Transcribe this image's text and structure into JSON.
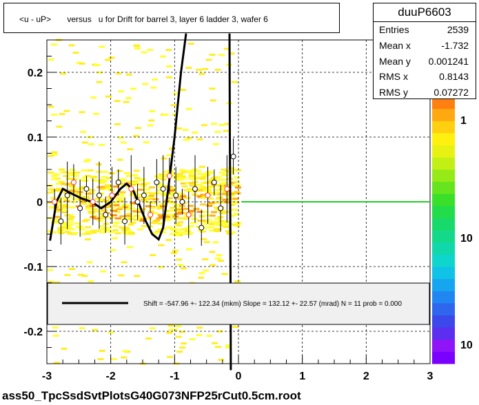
{
  "title": "<u - uP>       versus   u for Drift for barrel 3, layer 6 ladder 3, wafer 6",
  "footer": "ass50_TpcSsdSvtPlotsG40G073NFP25rCut0.5cm.root",
  "stats": {
    "name": "duuP6603",
    "rows": [
      {
        "label": "Entries",
        "value": "2539"
      },
      {
        "label": "Mean x",
        "value": "-1.732"
      },
      {
        "label": "Mean y",
        "value": "0.001241"
      },
      {
        "label": "RMS x",
        "value": "0.8143"
      },
      {
        "label": "RMS y",
        "value": "0.07272"
      }
    ]
  },
  "legend": {
    "text": "Shift =  -547.96 +- 122.34 (mkm) Slope =   132.12 +- 22.57 (mrad)  N = 11 prob = 0.000"
  },
  "colors": {
    "fit_line": "#000000",
    "zero_line": "#22cc22",
    "markers_open": "#000000",
    "markers_red": "#ff3333"
  },
  "chart_data": {
    "type": "heatmap",
    "title": "<u - uP>       versus   u for Drift for barrel 3, layer 6 ladder 3, wafer 6",
    "xlabel": "",
    "ylabel": "",
    "xlim": [
      -3,
      3
    ],
    "ylim": [
      -0.25,
      0.25
    ],
    "x_ticks": [
      -3,
      -2,
      -1,
      0,
      1,
      2,
      3
    ],
    "y_ticks": [
      -0.2,
      -0.1,
      0,
      0.1,
      0.2
    ],
    "y_tick_labels": [
      "-0.2",
      "-0.1",
      "0",
      "0.1",
      "0.2"
    ],
    "grid": true,
    "colorbar": {
      "scale": "log",
      "tick_labels": [
        "1",
        "10",
        "10"
      ]
    },
    "profile_points": [
      {
        "x": -2.88,
        "y": 0.0
      },
      {
        "x": -2.78,
        "y": -0.03
      },
      {
        "x": -2.68,
        "y": 0.01
      },
      {
        "x": -2.58,
        "y": 0.03
      },
      {
        "x": -2.48,
        "y": -0.01
      },
      {
        "x": -2.38,
        "y": 0.02
      },
      {
        "x": -2.28,
        "y": 0.0
      },
      {
        "x": -2.18,
        "y": 0.01
      },
      {
        "x": -2.08,
        "y": -0.02
      },
      {
        "x": -1.98,
        "y": 0.01
      },
      {
        "x": -1.88,
        "y": 0.03
      },
      {
        "x": -1.78,
        "y": -0.03
      },
      {
        "x": -1.68,
        "y": 0.02
      },
      {
        "x": -1.58,
        "y": 0.0
      },
      {
        "x": -1.48,
        "y": 0.01
      },
      {
        "x": -1.38,
        "y": -0.02
      },
      {
        "x": -1.28,
        "y": 0.03
      },
      {
        "x": -1.18,
        "y": 0.02
      },
      {
        "x": -1.08,
        "y": 0.04
      },
      {
        "x": -0.98,
        "y": 0.01
      },
      {
        "x": -0.88,
        "y": 0.0
      },
      {
        "x": -0.78,
        "y": -0.02
      },
      {
        "x": -0.68,
        "y": 0.02
      },
      {
        "x": -0.58,
        "y": -0.04
      },
      {
        "x": -0.48,
        "y": 0.01
      },
      {
        "x": -0.38,
        "y": 0.03
      },
      {
        "x": -0.28,
        "y": -0.01
      },
      {
        "x": -0.18,
        "y": 0.02
      },
      {
        "x": -0.08,
        "y": 0.07
      }
    ],
    "fit_curve": [
      [
        -2.95,
        -0.06
      ],
      [
        -2.85,
        0.0
      ],
      [
        -2.75,
        0.02
      ],
      [
        -2.6,
        0.012
      ],
      [
        -2.45,
        0.005
      ],
      [
        -2.3,
        0.0
      ],
      [
        -2.15,
        -0.01
      ],
      [
        -2.0,
        0.0
      ],
      [
        -1.85,
        0.02
      ],
      [
        -1.75,
        0.028
      ],
      [
        -1.65,
        0.018
      ],
      [
        -1.55,
        -0.005
      ],
      [
        -1.45,
        -0.03
      ],
      [
        -1.35,
        -0.05
      ],
      [
        -1.25,
        -0.058
      ],
      [
        -1.18,
        -0.04
      ],
      [
        -1.1,
        0.02
      ],
      [
        -1.0,
        0.1
      ],
      [
        -0.9,
        0.2
      ],
      [
        -0.82,
        0.26
      ]
    ],
    "fit_curve_right": [
      [
        -0.14,
        0.26
      ],
      [
        -0.135,
        0.1
      ],
      [
        -0.13,
        0.0
      ],
      [
        -0.125,
        -0.1
      ],
      [
        -0.12,
        -0.26
      ]
    ],
    "zero_line": {
      "x": [
        0.05,
        3.0
      ],
      "y": 0.0
    }
  }
}
